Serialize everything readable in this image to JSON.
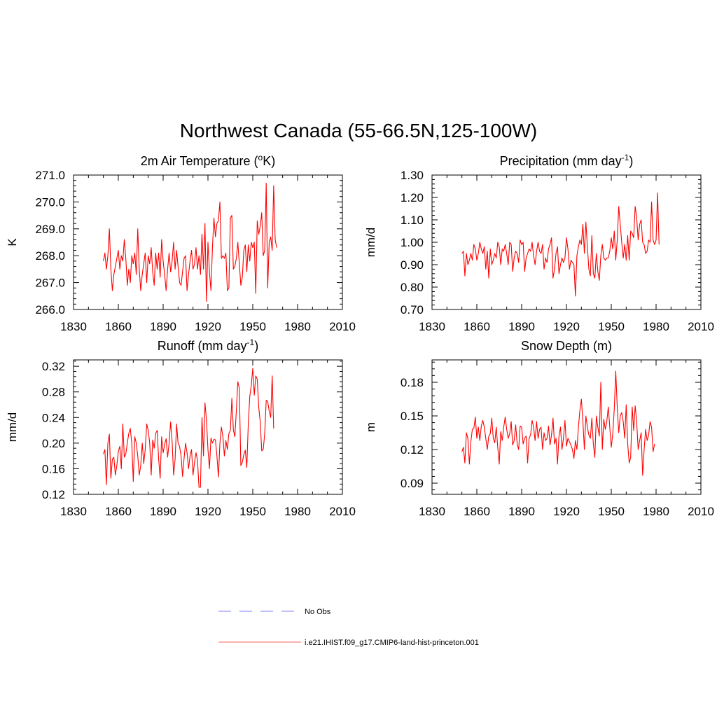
{
  "figure": {
    "title": "Northwest Canada (55-66.5N,125-100W)"
  },
  "colors": {
    "model": "#ff0000",
    "obs": "#9999ff",
    "axis": "#000000"
  },
  "legend": {
    "items": [
      {
        "label": "No Obs",
        "style": "dashed",
        "color": "#9999ff"
      },
      {
        "label": "i.e21.IHIST.f09_g17.CMIP6-land-hist-princeton.001",
        "style": "solid",
        "color": "#ff0000"
      }
    ]
  },
  "chart_data": [
    {
      "type": "line",
      "title_base": "2m Air Temperature (",
      "title_sup": "o",
      "title_tail": "K)",
      "ylabel": "K",
      "xlim": [
        1830,
        2010
      ],
      "ylim": [
        266.0,
        271.0
      ],
      "xticks": [
        1830,
        1860,
        1890,
        1920,
        1950,
        1980,
        2010
      ],
      "yticks": [
        "266.0",
        "267.0",
        "268.0",
        "269.0",
        "270.0",
        "271.0"
      ],
      "x_start": 1850,
      "series": [
        {
          "values": [
            267.8,
            268.1,
            267.5,
            268.0,
            269.0,
            267.5,
            266.7,
            267.3,
            267.6,
            267.9,
            268.2,
            267.5,
            268.0,
            267.8,
            268.6,
            267.9,
            266.9,
            267.5,
            267.0,
            268.0,
            267.7,
            268.1,
            267.3,
            269.0,
            267.5,
            266.7,
            267.3,
            267.7,
            268.1,
            267.0,
            268.0,
            267.7,
            268.3,
            267.4,
            266.9,
            268.1,
            267.5,
            268.1,
            267.2,
            268.6,
            267.8,
            267.3,
            266.7,
            267.5,
            268.1,
            267.4,
            267.8,
            268.5,
            267.5,
            268.2,
            267.6,
            267.0,
            266.9,
            267.4,
            267.9,
            268.0,
            266.7,
            267.3,
            267.8,
            268.2,
            267.5,
            267.7,
            268.3,
            267.5,
            268.0,
            267.3,
            268.8,
            267.5,
            269.2,
            266.3,
            268.5,
            267.4,
            266.7,
            268.3,
            269.4,
            268.7,
            269.2,
            269.3,
            270.0,
            267.9,
            268.0,
            267.9,
            268.1,
            266.7,
            266.8,
            269.4,
            269.5,
            267.5,
            267.6,
            267.9,
            268.5,
            267.7,
            266.9,
            267.2,
            268.2,
            268.4,
            267.4,
            268.4,
            267.8,
            268.5,
            268.3,
            268.5,
            266.6,
            269.3,
            268.8,
            269.1,
            269.6,
            268.0,
            268.2,
            270.7,
            266.8,
            268.5,
            268.7,
            268.2,
            270.6,
            268.6,
            268.3
          ]
        }
      ]
    },
    {
      "type": "line",
      "title_base": "Precipitation (mm day",
      "title_sup": "-1",
      "title_tail": ")",
      "ylabel": "mm/d",
      "xlim": [
        1830,
        2010
      ],
      "ylim": [
        0.7,
        1.3
      ],
      "xticks": [
        1830,
        1860,
        1890,
        1920,
        1950,
        1980,
        2010
      ],
      "yticks": [
        "0.70",
        "0.80",
        "0.90",
        "1.00",
        "1.10",
        "1.20",
        "1.30"
      ],
      "x_start": 1850,
      "series": [
        {
          "values": [
            0.95,
            0.96,
            0.85,
            0.95,
            0.9,
            0.92,
            0.95,
            0.92,
            0.99,
            0.97,
            0.92,
            0.95,
            1.0,
            0.97,
            0.95,
            0.98,
            0.88,
            0.96,
            0.84,
            0.97,
            0.9,
            0.92,
            0.95,
            0.93,
            1.0,
            0.98,
            0.9,
            0.97,
            0.96,
            0.99,
            0.95,
            0.9,
            1.0,
            0.99,
            0.87,
            0.93,
            0.96,
            0.95,
            0.91,
            1.01,
            0.99,
            1.0,
            0.87,
            0.93,
            0.95,
            0.97,
            0.96,
            1.0,
            0.94,
            0.9,
            0.96,
            1.0,
            0.96,
            0.95,
            0.99,
            0.88,
            0.93,
            0.91,
            0.97,
            0.99,
            1.02,
            0.84,
            0.88,
            0.95,
            0.98,
            0.86,
            0.9,
            0.93,
            0.91,
            0.93,
            1.02,
            0.97,
            0.88,
            0.92,
            0.91,
            0.9,
            0.76,
            0.94,
            0.98,
            1.01,
            0.99,
            1.08,
            0.95,
            1.09,
            0.98,
            0.88,
            0.85,
            1.03,
            0.86,
            0.84,
            0.95,
            0.87,
            0.83,
            0.94,
            0.99,
            0.93,
            0.92,
            0.93,
            0.93,
            0.96,
            1.02,
            0.97,
            1.05,
            0.92,
            1.01,
            1.16,
            1.08,
            1.0,
            0.93,
            0.99,
            0.92,
            1.03,
            0.92,
            1.05,
            1.04,
            1.02,
            1.16,
            1.11,
            1.01,
            1.08,
            1.1,
            1.0,
            0.99,
            0.95,
            0.96,
            1.01,
            1.0,
            1.18,
            1.01,
            0.99,
            1.01,
            1.22,
            0.99
          ]
        }
      ]
    },
    {
      "type": "line",
      "title_base": "Runoff (mm day",
      "title_sup": "-1",
      "title_tail": ")",
      "ylabel": "mm/d",
      "xlim": [
        1830,
        2010
      ],
      "ylim": [
        0.12,
        0.33
      ],
      "xticks": [
        1830,
        1860,
        1890,
        1920,
        1950,
        1980,
        2010
      ],
      "yticks": [
        "0.12",
        "0.16",
        "0.20",
        "0.24",
        "0.28",
        "0.32"
      ],
      "x_start": 1850,
      "series": [
        {
          "values": [
            0.183,
            0.19,
            0.135,
            0.2,
            0.214,
            0.145,
            0.175,
            0.178,
            0.15,
            0.165,
            0.187,
            0.195,
            0.16,
            0.23,
            0.178,
            0.183,
            0.2,
            0.215,
            0.223,
            0.2,
            0.14,
            0.21,
            0.2,
            0.18,
            0.15,
            0.165,
            0.2,
            0.168,
            0.19,
            0.23,
            0.22,
            0.2,
            0.15,
            0.205,
            0.192,
            0.215,
            0.22,
            0.175,
            0.145,
            0.21,
            0.185,
            0.198,
            0.207,
            0.178,
            0.2,
            0.233,
            0.203,
            0.15,
            0.175,
            0.23,
            0.2,
            0.195,
            0.18,
            0.148,
            0.176,
            0.2,
            0.185,
            0.16,
            0.18,
            0.19,
            0.15,
            0.17,
            0.185,
            0.173,
            0.131,
            0.131,
            0.24,
            0.18,
            0.263,
            0.236,
            0.19,
            0.16,
            0.208,
            0.2,
            0.206,
            0.205,
            0.18,
            0.147,
            0.2,
            0.225,
            0.21,
            0.18,
            0.204,
            0.19,
            0.215,
            0.22,
            0.27,
            0.221,
            0.21,
            0.25,
            0.296,
            0.286,
            0.165,
            0.17,
            0.182,
            0.189,
            0.162,
            0.23,
            0.273,
            0.29,
            0.317,
            0.275,
            0.305,
            0.3,
            0.256,
            0.233,
            0.188,
            0.19,
            0.215,
            0.267,
            0.265,
            0.25,
            0.24,
            0.305,
            0.223
          ]
        }
      ]
    },
    {
      "type": "line",
      "title_base": "Snow Depth (m)",
      "title_sup": "",
      "title_tail": "",
      "ylabel": "m",
      "xlim": [
        1830,
        2010
      ],
      "ylim": [
        0.08,
        0.2
      ],
      "xticks": [
        1830,
        1860,
        1890,
        1920,
        1950,
        1980,
        2010
      ],
      "yticks": [
        "0.09",
        "0.12",
        "0.15",
        "0.18"
      ],
      "x_start": 1850,
      "series": [
        {
          "values": [
            0.118,
            0.122,
            0.108,
            0.135,
            0.13,
            0.107,
            0.127,
            0.138,
            0.139,
            0.149,
            0.13,
            0.14,
            0.128,
            0.141,
            0.146,
            0.14,
            0.13,
            0.12,
            0.132,
            0.134,
            0.148,
            0.13,
            0.126,
            0.14,
            0.122,
            0.107,
            0.136,
            0.128,
            0.14,
            0.149,
            0.138,
            0.13,
            0.134,
            0.145,
            0.124,
            0.128,
            0.142,
            0.125,
            0.12,
            0.141,
            0.14,
            0.125,
            0.13,
            0.132,
            0.108,
            0.13,
            0.133,
            0.146,
            0.14,
            0.128,
            0.145,
            0.13,
            0.138,
            0.14,
            0.12,
            0.135,
            0.128,
            0.13,
            0.141,
            0.124,
            0.133,
            0.148,
            0.125,
            0.13,
            0.107,
            0.132,
            0.14,
            0.12,
            0.13,
            0.146,
            0.123,
            0.13,
            0.127,
            0.124,
            0.12,
            0.112,
            0.128,
            0.12,
            0.14,
            0.155,
            0.165,
            0.145,
            0.12,
            0.15,
            0.14,
            0.133,
            0.13,
            0.148,
            0.125,
            0.113,
            0.15,
            0.14,
            0.132,
            0.18,
            0.12,
            0.147,
            0.138,
            0.145,
            0.158,
            0.14,
            0.122,
            0.134,
            0.156,
            0.19,
            0.158,
            0.135,
            0.15,
            0.153,
            0.145,
            0.13,
            0.16,
            0.125,
            0.108,
            0.113,
            0.158,
            0.137,
            0.159,
            0.145,
            0.12,
            0.128,
            0.135,
            0.097,
            0.12,
            0.138,
            0.128,
            0.133,
            0.145,
            0.14,
            0.118,
            0.125
          ]
        }
      ]
    }
  ]
}
